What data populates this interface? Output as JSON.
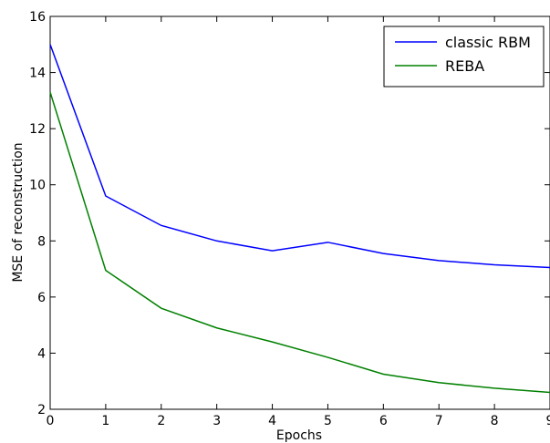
{
  "chart_data": {
    "type": "line",
    "title": "",
    "xlabel": "Epochs",
    "ylabel": "MSE of reconstruction",
    "xlim": [
      0,
      9
    ],
    "ylim": [
      2,
      16
    ],
    "xticks": [
      "0",
      "1",
      "2",
      "3",
      "4",
      "5",
      "6",
      "7",
      "8",
      "9"
    ],
    "yticks": [
      "2",
      "4",
      "6",
      "8",
      "10",
      "12",
      "14",
      "16"
    ],
    "grid": false,
    "legend_position": "top-right",
    "x": [
      0,
      1,
      2,
      3,
      4,
      5,
      6,
      7,
      8,
      9
    ],
    "series": [
      {
        "name": "classic RBM",
        "color": "#0000ff",
        "values": [
          15.0,
          9.6,
          8.55,
          8.0,
          7.65,
          7.95,
          7.55,
          7.3,
          7.15,
          7.05
        ]
      },
      {
        "name": "REBA",
        "color": "#008000",
        "values": [
          13.3,
          6.95,
          5.6,
          4.9,
          4.4,
          3.85,
          3.25,
          2.95,
          2.75,
          2.6
        ]
      }
    ]
  }
}
